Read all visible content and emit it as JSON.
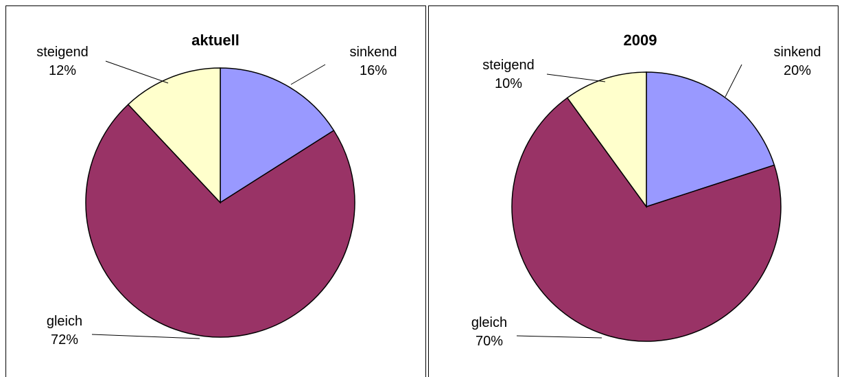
{
  "chart_data": [
    {
      "type": "pie",
      "title": "aktuell",
      "slices": [
        {
          "label": "sinkend",
          "value": 16,
          "display": "16%",
          "color": "#9999ff"
        },
        {
          "label": "gleich",
          "value": 72,
          "display": "72%",
          "color": "#993366"
        },
        {
          "label": "steigend",
          "value": 12,
          "display": "12%",
          "color": "#ffffcc"
        }
      ]
    },
    {
      "type": "pie",
      "title": "2009",
      "slices": [
        {
          "label": "sinkend",
          "value": 20,
          "display": "20%",
          "color": "#9999ff"
        },
        {
          "label": "gleich",
          "value": 70,
          "display": "70%",
          "color": "#993366"
        },
        {
          "label": "steigend",
          "value": 10,
          "display": "10%",
          "color": "#ffffcc"
        }
      ]
    }
  ]
}
